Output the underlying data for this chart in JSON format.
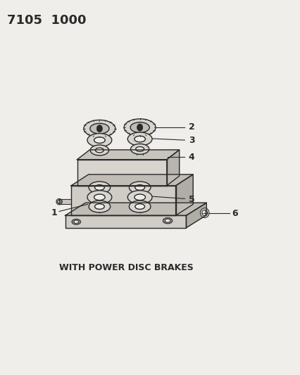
{
  "title_text": "7105  1000",
  "caption": "WITH POWER DISC BRAKES",
  "bg_color": "#f0eeeb",
  "line_color": "#2a2a2a",
  "title_fontsize": 13,
  "caption_fontsize": 9,
  "label_fontsize": 9
}
